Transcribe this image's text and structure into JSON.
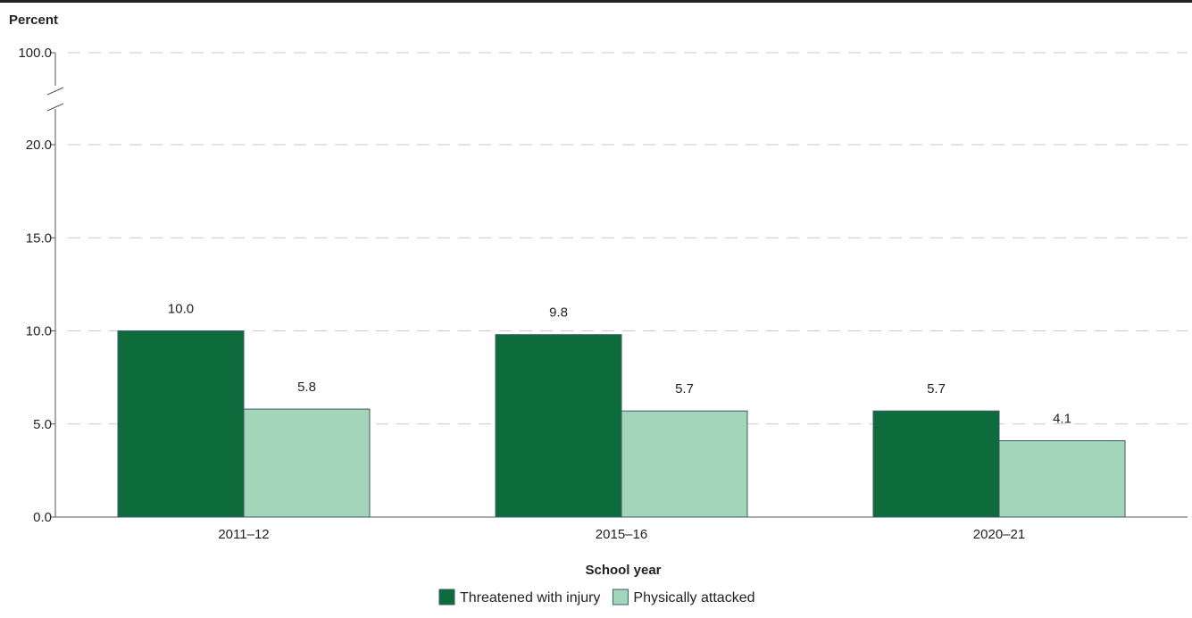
{
  "chart_data": {
    "type": "bar",
    "ylabel": "Percent",
    "xlabel": "School year",
    "categories": [
      "2011–12",
      "2015–16",
      "2020–21"
    ],
    "series": [
      {
        "name": "Threatened with injury",
        "color": "#0e6b3b",
        "values": [
          10.0,
          9.8,
          5.7
        ],
        "labels": [
          "10.0",
          "9.8",
          "5.7"
        ]
      },
      {
        "name": "Physically attacked",
        "color": "#a3d6b8",
        "values": [
          5.8,
          5.7,
          4.1
        ],
        "labels": [
          "5.8",
          "5.7",
          "4.1"
        ]
      }
    ],
    "yticks": [
      "0.0",
      "5.0",
      "10.0",
      "15.0",
      "20.0",
      "100.0"
    ],
    "ylim": [
      0,
      100
    ],
    "axis_break": {
      "from": 20,
      "to": 100
    },
    "grid": true,
    "legend_position": "bottom"
  }
}
